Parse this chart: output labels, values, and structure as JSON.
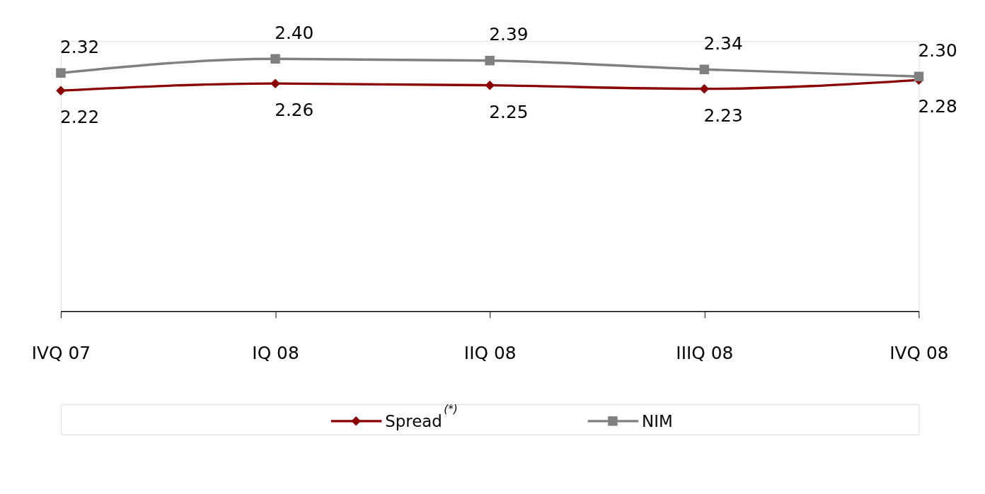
{
  "chart_data": {
    "type": "line",
    "categories": [
      "IVQ 07",
      "IQ 08",
      "IIQ 08",
      "IIIQ 08",
      "IVQ 08"
    ],
    "series": [
      {
        "name": "Spread$^{(*)}$",
        "color": "#8b0000",
        "marker": "diamond",
        "values": [
          2.22,
          2.26,
          2.25,
          2.23,
          2.28
        ],
        "value_labels": [
          "2.22",
          "2.26",
          "2.25",
          "2.23",
          "2.28"
        ]
      },
      {
        "name": "NIM",
        "color": "#808080",
        "marker": "square",
        "values": [
          2.32,
          2.4,
          2.39,
          2.34,
          2.3
        ],
        "value_labels": [
          "2.32",
          "2.40",
          "2.39",
          "2.34",
          "2.30"
        ]
      }
    ],
    "ylim": [
      0.97,
      2.5
    ],
    "tick_labels": "x",
    "grid": false,
    "legend": "bottom",
    "line_style": "solid"
  }
}
